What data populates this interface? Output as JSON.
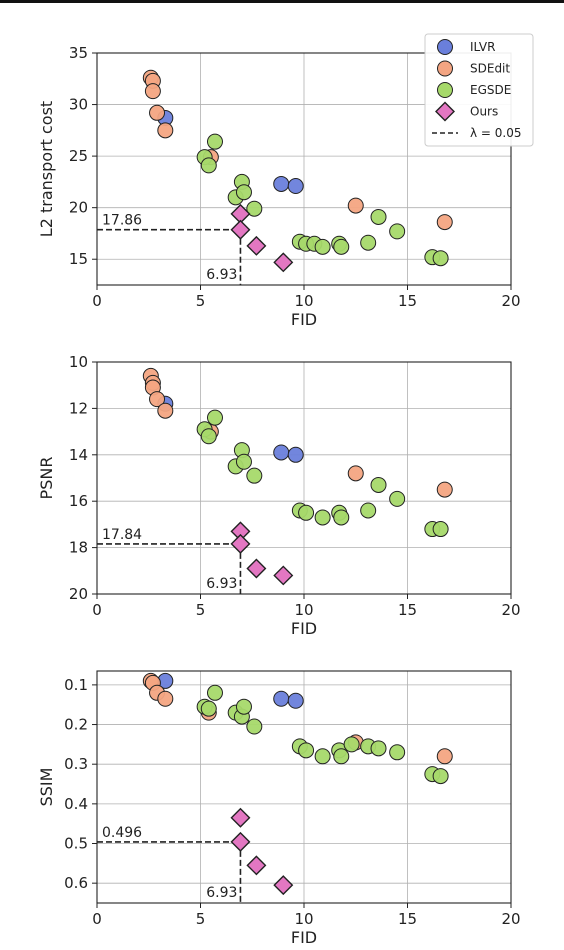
{
  "colors": {
    "ILVR": "#6a7fdb",
    "SDEdit": "#f4a582",
    "EGSDE": "#a6d96a",
    "Ours": "#e377c2",
    "edge": "#222222",
    "grid": "#b0b0b0"
  },
  "legend": {
    "placement": "top-right",
    "entries": [
      {
        "label": "ILVR",
        "marker": "circle",
        "color_key": "ILVR"
      },
      {
        "label": "SDEdit",
        "marker": "circle",
        "color_key": "SDEdit"
      },
      {
        "label": "EGSDE",
        "marker": "circle",
        "color_key": "EGSDE"
      },
      {
        "label": "Ours",
        "marker": "diamond",
        "color_key": "Ours"
      },
      {
        "label": "λ = 0.05",
        "marker": "dashed-line",
        "color_key": "edge"
      }
    ]
  },
  "chart_data": [
    {
      "type": "scatter",
      "xlabel": "FID",
      "ylabel": "L2 transport cost",
      "xlim": [
        0,
        20
      ],
      "ylim": [
        12.5,
        35
      ],
      "y_inverted": false,
      "xticks": [
        0,
        5,
        10,
        15,
        20
      ],
      "yticks": [
        15,
        20,
        25,
        30,
        35
      ],
      "ytick_labels": [
        "15",
        "20",
        "25",
        "30",
        "35"
      ],
      "grid": true,
      "has_legend": true,
      "reference": {
        "x": 6.93,
        "y": 17.86,
        "x_label": "6.93",
        "y_label": "17.86"
      },
      "series": [
        {
          "name": "ILVR",
          "marker": "circle",
          "points": [
            [
              3.3,
              28.7
            ],
            [
              8.9,
              22.3
            ],
            [
              9.6,
              22.1
            ]
          ]
        },
        {
          "name": "SDEdit",
          "marker": "circle",
          "points": [
            [
              2.6,
              32.6
            ],
            [
              2.7,
              32.3
            ],
            [
              2.7,
              31.3
            ],
            [
              2.9,
              29.2
            ],
            [
              3.3,
              27.5
            ],
            [
              5.5,
              24.9
            ],
            [
              12.5,
              20.2
            ],
            [
              16.8,
              18.6
            ]
          ]
        },
        {
          "name": "EGSDE",
          "marker": "circle",
          "points": [
            [
              5.2,
              24.9
            ],
            [
              5.4,
              24.1
            ],
            [
              5.7,
              26.4
            ],
            [
              6.7,
              21.0
            ],
            [
              7.0,
              22.5
            ],
            [
              7.1,
              21.5
            ],
            [
              7.6,
              19.9
            ],
            [
              9.8,
              16.7
            ],
            [
              10.1,
              16.5
            ],
            [
              10.5,
              16.5
            ],
            [
              10.9,
              16.2
            ],
            [
              11.7,
              16.5
            ],
            [
              11.8,
              16.2
            ],
            [
              13.1,
              16.6
            ],
            [
              13.6,
              19.1
            ],
            [
              14.5,
              17.7
            ],
            [
              16.2,
              15.2
            ],
            [
              16.6,
              15.1
            ]
          ]
        },
        {
          "name": "Ours",
          "marker": "diamond",
          "points": [
            [
              6.93,
              19.4
            ],
            [
              6.93,
              17.86
            ],
            [
              7.7,
              16.3
            ],
            [
              9.0,
              14.7
            ]
          ]
        }
      ]
    },
    {
      "type": "scatter",
      "xlabel": "FID",
      "ylabel": "PSNR",
      "xlim": [
        0,
        20
      ],
      "ylim": [
        10,
        20
      ],
      "y_inverted": true,
      "xticks": [
        0,
        5,
        10,
        15,
        20
      ],
      "yticks": [
        10,
        12,
        14,
        16,
        18,
        20
      ],
      "ytick_labels": [
        "10",
        "12",
        "14",
        "16",
        "18",
        "20"
      ],
      "grid": true,
      "has_legend": false,
      "reference": {
        "x": 6.93,
        "y": 17.84,
        "x_label": "6.93",
        "y_label": "17.84"
      },
      "series": [
        {
          "name": "ILVR",
          "marker": "circle",
          "points": [
            [
              3.3,
              11.8
            ],
            [
              8.9,
              13.9
            ],
            [
              9.6,
              14.0
            ]
          ]
        },
        {
          "name": "SDEdit",
          "marker": "circle",
          "points": [
            [
              2.6,
              10.6
            ],
            [
              2.7,
              10.9
            ],
            [
              2.7,
              11.1
            ],
            [
              2.9,
              11.6
            ],
            [
              3.3,
              12.1
            ],
            [
              5.5,
              13.0
            ],
            [
              12.5,
              14.8
            ],
            [
              16.8,
              15.5
            ]
          ]
        },
        {
          "name": "EGSDE",
          "marker": "circle",
          "points": [
            [
              5.2,
              12.9
            ],
            [
              5.4,
              13.2
            ],
            [
              5.7,
              12.4
            ],
            [
              6.7,
              14.5
            ],
            [
              7.0,
              13.8
            ],
            [
              7.1,
              14.3
            ],
            [
              7.6,
              14.9
            ],
            [
              9.8,
              16.4
            ],
            [
              10.1,
              16.5
            ],
            [
              10.9,
              16.7
            ],
            [
              11.7,
              16.5
            ],
            [
              11.8,
              16.7
            ],
            [
              13.1,
              16.4
            ],
            [
              13.6,
              15.3
            ],
            [
              14.5,
              15.9
            ],
            [
              16.2,
              17.2
            ],
            [
              16.6,
              17.2
            ]
          ]
        },
        {
          "name": "Ours",
          "marker": "diamond",
          "points": [
            [
              6.93,
              17.3
            ],
            [
              6.93,
              17.84
            ],
            [
              7.7,
              18.9
            ],
            [
              9.0,
              19.2
            ]
          ]
        }
      ]
    },
    {
      "type": "scatter",
      "xlabel": "FID",
      "ylabel": "SSIM",
      "xlim": [
        0,
        20
      ],
      "ylim": [
        0.065,
        0.65
      ],
      "y_inverted": true,
      "xticks": [
        0,
        5,
        10,
        15,
        20
      ],
      "yticks": [
        0.1,
        0.2,
        0.3,
        0.4,
        0.5,
        0.6
      ],
      "ytick_labels": [
        "0.1",
        "0.2",
        "0.3",
        "0.4",
        "0.5",
        "0.6"
      ],
      "grid": true,
      "has_legend": false,
      "reference": {
        "x": 6.93,
        "y": 0.496,
        "x_label": "6.93",
        "y_label": "0.496"
      },
      "series": [
        {
          "name": "ILVR",
          "marker": "circle",
          "points": [
            [
              3.3,
              0.09
            ],
            [
              8.9,
              0.135
            ],
            [
              9.6,
              0.14
            ]
          ]
        },
        {
          "name": "SDEdit",
          "marker": "circle",
          "points": [
            [
              2.6,
              0.09
            ],
            [
              2.7,
              0.095
            ],
            [
              2.9,
              0.12
            ],
            [
              3.3,
              0.135
            ],
            [
              5.4,
              0.17
            ],
            [
              12.5,
              0.245
            ],
            [
              16.8,
              0.28
            ]
          ]
        },
        {
          "name": "EGSDE",
          "marker": "circle",
          "points": [
            [
              5.2,
              0.155
            ],
            [
              5.4,
              0.16
            ],
            [
              5.7,
              0.12
            ],
            [
              6.7,
              0.17
            ],
            [
              7.0,
              0.18
            ],
            [
              7.1,
              0.155
            ],
            [
              7.6,
              0.205
            ],
            [
              9.8,
              0.255
            ],
            [
              10.1,
              0.265
            ],
            [
              10.9,
              0.28
            ],
            [
              11.7,
              0.265
            ],
            [
              11.8,
              0.28
            ],
            [
              12.3,
              0.25
            ],
            [
              13.1,
              0.255
            ],
            [
              13.6,
              0.26
            ],
            [
              14.5,
              0.27
            ],
            [
              16.2,
              0.325
            ],
            [
              16.6,
              0.33
            ]
          ]
        },
        {
          "name": "Ours",
          "marker": "diamond",
          "points": [
            [
              6.93,
              0.435
            ],
            [
              6.93,
              0.496
            ],
            [
              7.7,
              0.555
            ],
            [
              9.0,
              0.605
            ]
          ]
        }
      ]
    }
  ]
}
